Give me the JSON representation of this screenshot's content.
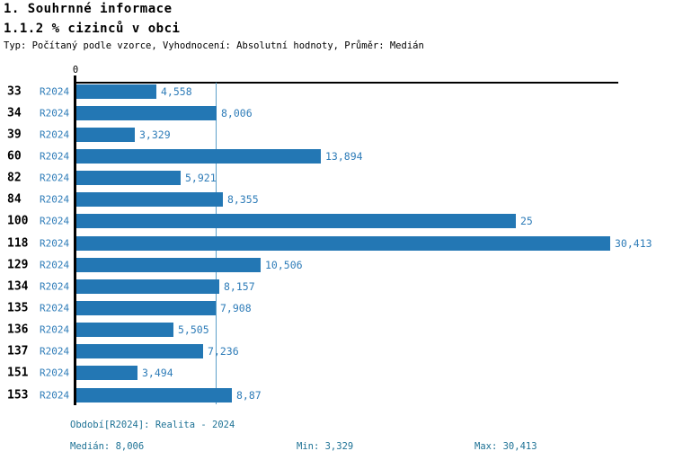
{
  "header": {
    "title": "1. Souhrnné informace",
    "subtitle": "1.1.2 % cizinců v obci",
    "meta": "Typ: Počítaný podle vzorce, Vyhodnocení: Absolutní hodnoty, Průměr: Medián"
  },
  "colors": {
    "bar": "#2377B4",
    "blue_text": "#2E7CB8",
    "footer_text": "#1E7295",
    "median_line": "#5C9FC8",
    "axis": "#000000"
  },
  "chart_data": {
    "type": "bar",
    "orientation": "horizontal",
    "title": "1.1.2 % cizinců v obci",
    "origin_label": "0",
    "xlim": [
      0,
      30.75
    ],
    "grid": "single vertical line at median value",
    "legend_position": "none",
    "categories": [
      "33",
      "34",
      "39",
      "60",
      "82",
      "84",
      "100",
      "118",
      "129",
      "134",
      "135",
      "136",
      "137",
      "151",
      "153"
    ],
    "series": [
      {
        "name": "R2024",
        "values": [
          4.558,
          8.006,
          3.329,
          13.894,
          5.921,
          8.355,
          25,
          30.413,
          10.506,
          8.157,
          7.908,
          5.505,
          7.236,
          3.494,
          8.87
        ]
      }
    ],
    "rows": [
      {
        "id": "33",
        "period": "R2024",
        "value": 4.558,
        "value_label": "4,558"
      },
      {
        "id": "34",
        "period": "R2024",
        "value": 8.006,
        "value_label": "8,006"
      },
      {
        "id": "39",
        "period": "R2024",
        "value": 3.329,
        "value_label": "3,329"
      },
      {
        "id": "60",
        "period": "R2024",
        "value": 13.894,
        "value_label": "13,894"
      },
      {
        "id": "82",
        "period": "R2024",
        "value": 5.921,
        "value_label": "5,921"
      },
      {
        "id": "84",
        "period": "R2024",
        "value": 8.355,
        "value_label": "8,355"
      },
      {
        "id": "100",
        "period": "R2024",
        "value": 25,
        "value_label": "25"
      },
      {
        "id": "118",
        "period": "R2024",
        "value": 30.413,
        "value_label": "30,413"
      },
      {
        "id": "129",
        "period": "R2024",
        "value": 10.506,
        "value_label": "10,506"
      },
      {
        "id": "134",
        "period": "R2024",
        "value": 8.157,
        "value_label": "8,157"
      },
      {
        "id": "135",
        "period": "R2024",
        "value": 7.908,
        "value_label": "7,908"
      },
      {
        "id": "136",
        "period": "R2024",
        "value": 5.505,
        "value_label": "5,505"
      },
      {
        "id": "137",
        "period": "R2024",
        "value": 7.236,
        "value_label": "7,236"
      },
      {
        "id": "151",
        "period": "R2024",
        "value": 3.494,
        "value_label": "3,494"
      },
      {
        "id": "153",
        "period": "R2024",
        "value": 8.87,
        "value_label": "8,87"
      }
    ],
    "stats": {
      "median": 8.006,
      "min": 3.329,
      "max": 30.413
    }
  },
  "footer": {
    "period_line": "Období[R2024]: Realita - 2024",
    "median": "Medián: 8,006",
    "min": "Min: 3,329",
    "max": "Max: 30,413"
  }
}
